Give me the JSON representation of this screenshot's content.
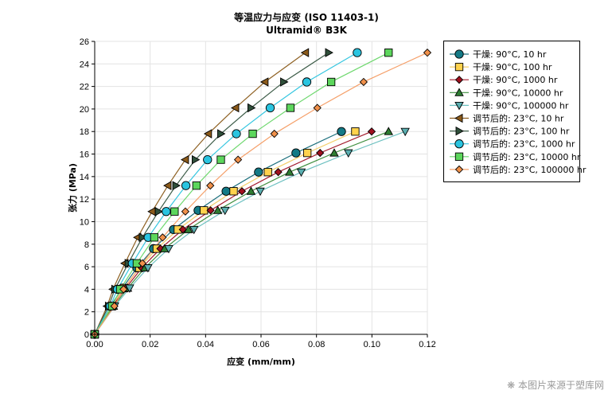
{
  "chart_data": {
    "type": "line",
    "title": "等温应力与应变 (ISO 11403-1)",
    "subtitle": "Ultramid® B3K",
    "xlabel": "应变 (mm/mm)",
    "ylabel": "张力 (MPa)",
    "xlim": [
      0,
      0.12
    ],
    "ylim": [
      0,
      26
    ],
    "xticks": [
      "0.00",
      "0.02",
      "0.04",
      "0.06",
      "0.08",
      "0.10",
      "0.12"
    ],
    "yticks": [
      "0",
      "2",
      "4",
      "6",
      "8",
      "10",
      "12",
      "14",
      "16",
      "18",
      "20",
      "22",
      "24",
      "26"
    ],
    "grid": true,
    "legend_position": "right",
    "series": [
      {
        "name": "干燥: 90°C, 10 hr",
        "marker": "circle",
        "color": "#1b6f7c",
        "fill": "#137a86",
        "x": [
          0,
          0.0057,
          0.01,
          0.0152,
          0.0212,
          0.0284,
          0.0373,
          0.0474,
          0.0591,
          0.0726,
          0.089
        ],
        "y": [
          0,
          2.5,
          4.1,
          5.9,
          7.6,
          9.3,
          11.0,
          12.7,
          14.4,
          16.1,
          18.0
        ]
      },
      {
        "name": "干燥: 90°C, 100 hr",
        "marker": "square",
        "color": "#f3cf6a",
        "fill": "#ffd24d",
        "x": [
          0,
          0.006,
          0.0106,
          0.0161,
          0.0224,
          0.03,
          0.0394,
          0.0501,
          0.0625,
          0.0767,
          0.094
        ],
        "y": [
          0,
          2.5,
          4.1,
          5.9,
          7.6,
          9.3,
          11.0,
          12.7,
          14.4,
          16.1,
          18.0
        ]
      },
      {
        "name": "干燥: 90°C, 1000 hr",
        "marker": "diamond",
        "color": "#a31a2c",
        "fill": "#a0101e",
        "x": [
          0,
          0.0064,
          0.0112,
          0.017,
          0.0237,
          0.0318,
          0.0418,
          0.0531,
          0.0662,
          0.0813,
          0.0999
        ],
        "y": [
          0,
          2.5,
          4.1,
          5.9,
          7.6,
          9.3,
          11.0,
          12.7,
          14.4,
          16.1,
          18.0
        ]
      },
      {
        "name": "干燥: 90°C, 10000 hr",
        "marker": "triangle-up",
        "color": "#3f8f3f",
        "fill": "#2e7d32",
        "x": [
          0,
          0.0068,
          0.0119,
          0.0181,
          0.0252,
          0.0338,
          0.0444,
          0.0564,
          0.0703,
          0.0864,
          0.106
        ],
        "y": [
          0,
          2.5,
          4.1,
          5.9,
          7.6,
          9.3,
          11.0,
          12.7,
          14.4,
          16.1,
          18.0
        ]
      },
      {
        "name": "干燥: 90°C, 100000 hr",
        "marker": "triangle-down",
        "color": "#6cc0c0",
        "fill": "#5aaeb0",
        "x": [
          0,
          0.0072,
          0.0126,
          0.0192,
          0.0267,
          0.0358,
          0.047,
          0.0597,
          0.0745,
          0.0915,
          0.112
        ],
        "y": [
          0,
          2.5,
          4.1,
          5.9,
          7.6,
          9.3,
          11.0,
          12.7,
          14.4,
          16.1,
          18.0
        ]
      },
      {
        "name": "调节后的: 23°C, 10 hr",
        "marker": "triangle-left",
        "color": "#8e6022",
        "fill": "#8b5a1a",
        "x": [
          0,
          0.0045,
          0.0066,
          0.0109,
          0.0155,
          0.0207,
          0.0264,
          0.0327,
          0.041,
          0.0508,
          0.0614,
          0.076
        ],
        "y": [
          0,
          2.5,
          4.0,
          6.3,
          8.6,
          10.9,
          13.2,
          15.5,
          17.8,
          20.1,
          22.4,
          25.0
        ]
      },
      {
        "name": "调节后的: 23°C, 100 hr",
        "marker": "triangle-right",
        "color": "#3d5c48",
        "fill": "#2f4f3a",
        "x": [
          0,
          0.005,
          0.0073,
          0.0121,
          0.0172,
          0.023,
          0.0293,
          0.0363,
          0.0455,
          0.0564,
          0.0682,
          0.0844
        ],
        "y": [
          0,
          2.5,
          4.0,
          6.3,
          8.6,
          10.9,
          13.2,
          15.5,
          17.8,
          20.1,
          22.4,
          25.0
        ]
      },
      {
        "name": "调节后的: 23°C, 1000 hr",
        "marker": "circle",
        "color": "#35c6e0",
        "fill": "#29c4e0",
        "x": [
          0,
          0.0056,
          0.0082,
          0.0136,
          0.0193,
          0.0258,
          0.0329,
          0.0407,
          0.0511,
          0.0633,
          0.0765,
          0.0947
        ],
        "y": [
          0,
          2.5,
          4.0,
          6.3,
          8.6,
          10.9,
          13.2,
          15.5,
          17.8,
          20.1,
          22.4,
          25.0
        ]
      },
      {
        "name": "调节后的: 23°C, 10000 hr",
        "marker": "square",
        "color": "#6fd86f",
        "fill": "#5cd65c",
        "x": [
          0,
          0.0063,
          0.0092,
          0.0152,
          0.0215,
          0.0288,
          0.0367,
          0.0455,
          0.057,
          0.0706,
          0.0853,
          0.106
        ],
        "y": [
          0,
          2.5,
          4.0,
          6.3,
          8.6,
          10.9,
          13.2,
          15.5,
          17.8,
          20.1,
          22.4,
          25.0
        ]
      },
      {
        "name": "调节后的: 23°C, 100000 hr",
        "marker": "diamond",
        "color": "#f5a06a",
        "fill": "#f0904a",
        "x": [
          0,
          0.0071,
          0.0104,
          0.0172,
          0.0245,
          0.0327,
          0.0417,
          0.0517,
          0.0648,
          0.0803,
          0.097,
          0.12
        ],
        "y": [
          0,
          2.5,
          4.0,
          6.3,
          8.6,
          10.9,
          13.2,
          15.5,
          17.8,
          20.1,
          22.4,
          25.0
        ]
      }
    ]
  },
  "watermark": "本图片来源于塑库网"
}
